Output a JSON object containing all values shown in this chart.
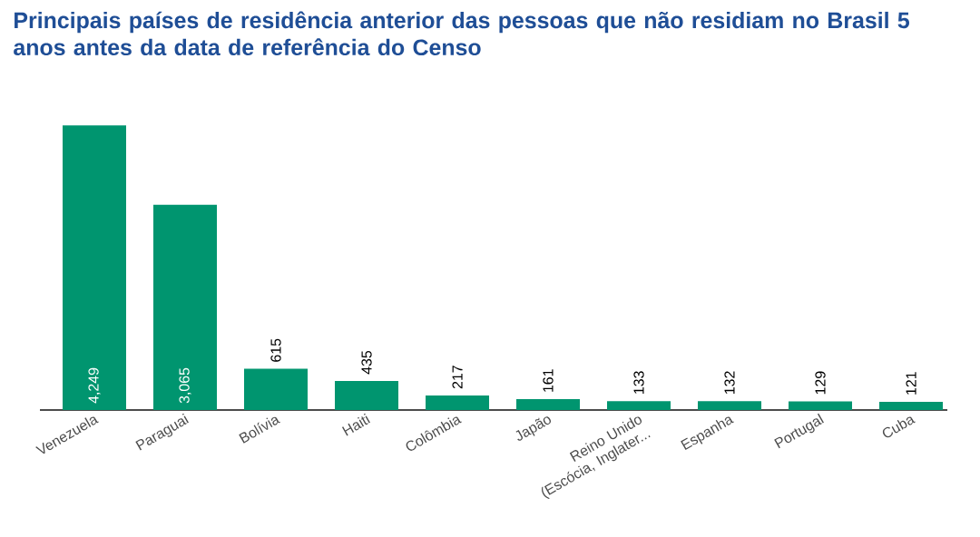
{
  "chart_data": {
    "type": "bar",
    "title": "Principais países de residência anterior das pessoas que não residiam no Brasil 5 anos antes da data de referência do Censo",
    "categories": [
      "Venezuela",
      "Paraguai",
      "Bolívia",
      "Haiti",
      "Colômbia",
      "Japão",
      "Reino Unido (Escócia, Inglater...",
      "Espanha",
      "Portugal",
      "Cuba"
    ],
    "values": [
      4249,
      3065,
      615,
      435,
      217,
      161,
      133,
      132,
      129,
      121
    ],
    "value_labels": [
      "4,249",
      "3,065",
      "615",
      "435",
      "217",
      "161",
      "133",
      "132",
      "129",
      "121"
    ],
    "color": "#00956f"
  }
}
